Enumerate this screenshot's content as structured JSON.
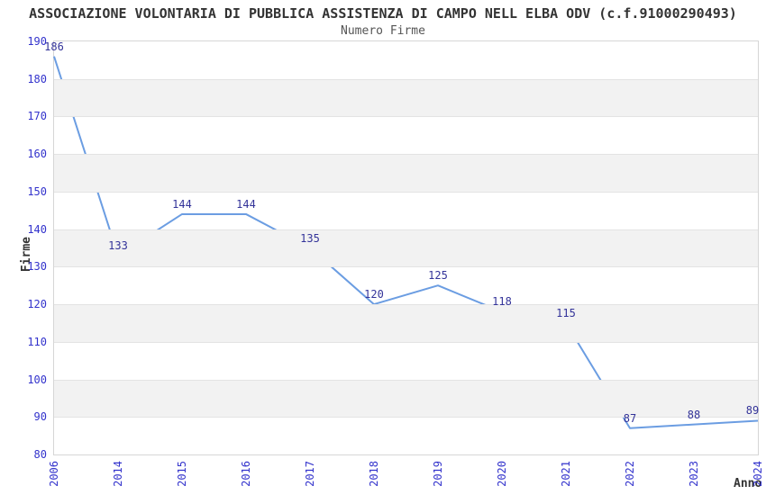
{
  "chart_data": {
    "type": "line",
    "title": "ASSOCIAZIONE VOLONTARIA DI PUBBLICA ASSISTENZA DI CAMPO NELL ELBA ODV (c.f.91000290493)",
    "subtitle": "Numero Firme",
    "xlabel": "Anno",
    "ylabel": "Firme",
    "categories": [
      "2006",
      "2014",
      "2015",
      "2016",
      "2017",
      "2018",
      "2019",
      "2020",
      "2021",
      "2022",
      "2023",
      "2024"
    ],
    "values": [
      186,
      133,
      144,
      144,
      135,
      120,
      125,
      118,
      115,
      87,
      88,
      89
    ],
    "ylim": [
      80,
      190
    ],
    "ytick_step": 10,
    "yticks": [
      80,
      90,
      100,
      110,
      120,
      130,
      140,
      150,
      160,
      170,
      180,
      190
    ],
    "grid": true,
    "legend": "none",
    "banded_background": true,
    "colors": {
      "line": "#6b9de2",
      "tick_label": "#3333cc",
      "data_label": "#333399",
      "band": "#f2f2f2",
      "gridline": "#e3e3e3",
      "plot_border": "#d6d6d6",
      "title": "#333333",
      "subtitle": "#555555",
      "axis_title": "#333333",
      "background": "#ffffff"
    }
  }
}
